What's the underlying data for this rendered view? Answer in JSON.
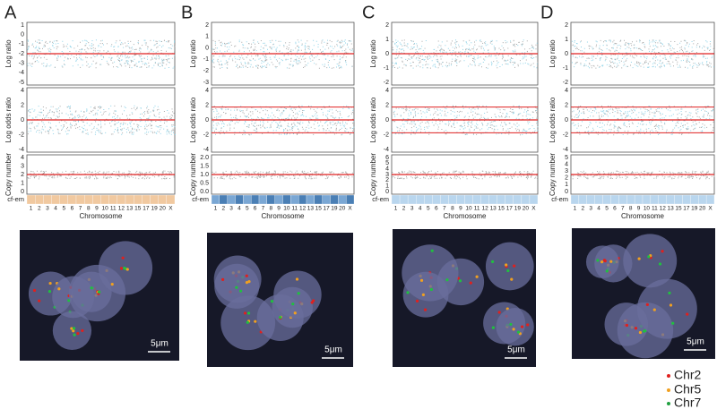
{
  "axis_labels": {
    "log_ratio": "Log ratio",
    "log_odds": "Log odds ratio",
    "copy_number": "Copy number",
    "cf_em": "cf-em",
    "x": "Chromosome"
  },
  "panels": [
    {
      "label": "A",
      "log_ratio_ticks": [
        "1",
        "0",
        "-1",
        "-2",
        "-3",
        "-4",
        "-5"
      ],
      "log_odds_ticks": [
        "4",
        "2",
        "0",
        "-2",
        "-4"
      ],
      "copy_number_ticks": [
        "4",
        "3",
        "2",
        "1",
        "0"
      ],
      "chromosomes": [
        "1",
        "2",
        "3",
        "4",
        "5",
        "6",
        "7",
        "8",
        "9",
        "10",
        "11",
        "12",
        "13",
        "15",
        "17",
        "19",
        "20",
        "X"
      ],
      "scale_bar": "5μm"
    },
    {
      "label": "B",
      "log_ratio_ticks": [
        "2",
        "1",
        "0",
        "-1",
        "-2",
        "-3"
      ],
      "log_odds_ticks": [
        "4",
        "2",
        "0",
        "-2",
        "-4"
      ],
      "copy_number_ticks": [
        "2.0",
        "1.5",
        "1.0",
        "0.5",
        "0.0"
      ],
      "chromosomes": [
        "1",
        "2",
        "3",
        "4",
        "5",
        "6",
        "7",
        "8",
        "9",
        "10",
        "11",
        "12",
        "13",
        "15",
        "17",
        "19",
        "20",
        "X"
      ],
      "scale_bar": "5μm"
    },
    {
      "label": "C",
      "log_ratio_ticks": [
        "2",
        "1",
        "0",
        "-1",
        "-2"
      ],
      "log_odds_ticks": [
        "4",
        "2",
        "0",
        "-2",
        "-4"
      ],
      "copy_number_ticks": [
        "6",
        "5",
        "4",
        "3",
        "2",
        "1",
        "0"
      ],
      "chromosomes": [
        "1",
        "2",
        "3",
        "4",
        "5",
        "6",
        "7",
        "8",
        "9",
        "10",
        "11",
        "12",
        "13",
        "15",
        "17",
        "19",
        "20",
        "X"
      ],
      "scale_bar": "5μm"
    },
    {
      "label": "D",
      "log_ratio_ticks": [
        "2",
        "1",
        "0",
        "-1",
        "-2"
      ],
      "log_odds_ticks": [
        "4",
        "2",
        "0",
        "-2",
        "-4"
      ],
      "copy_number_ticks": [
        "5",
        "4",
        "3",
        "2",
        "1",
        "0"
      ],
      "chromosomes": [
        "1",
        "2",
        "3",
        "4",
        "5",
        "6",
        "7",
        "8",
        "9",
        "10",
        "11",
        "12",
        "13",
        "15",
        "17",
        "19",
        "20",
        "X"
      ],
      "scale_bar": "5μm"
    }
  ],
  "legend": [
    "Chr2",
    "Chr5",
    "Chr7"
  ]
}
